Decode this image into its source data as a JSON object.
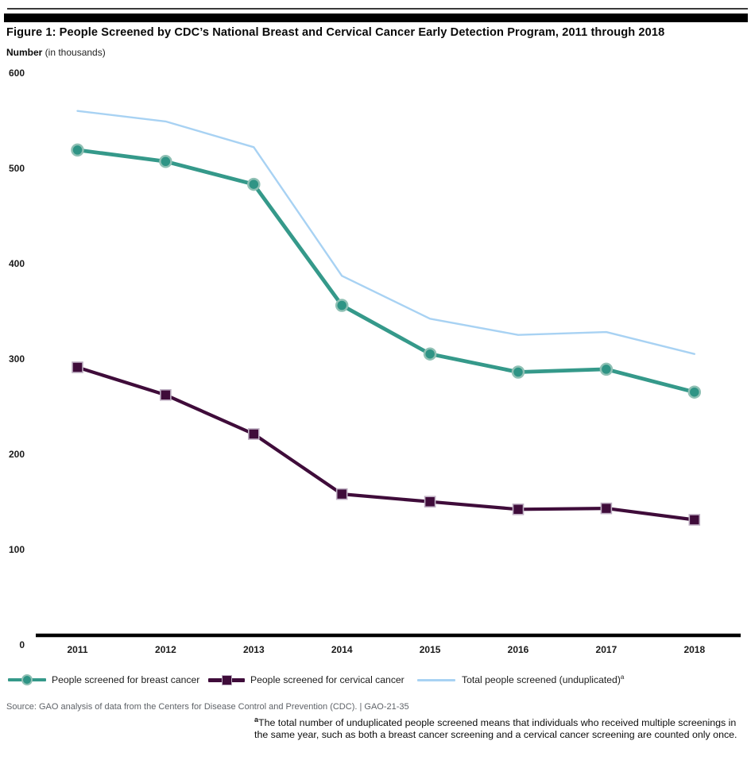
{
  "header": {
    "title": "Figure 1: People Screened by CDC’s National Breast and Cervical Cancer Early Detection Program, 2011 through 2018",
    "unit_bold": "Number",
    "unit_rest": " (in thousands)"
  },
  "chart_data": {
    "type": "line",
    "title": "People Screened by CDC's National Breast and Cervical Cancer Early Detection Program, 2011 through 2018",
    "xlabel": "",
    "ylabel": "Number (in thousands)",
    "categories": [
      "2011",
      "2012",
      "2013",
      "2014",
      "2015",
      "2016",
      "2017",
      "2018"
    ],
    "series": [
      {
        "name": "People screened for breast cancer",
        "values": [
          519,
          507,
          483,
          356,
          305,
          286,
          289,
          265
        ],
        "color": "#35998a",
        "marker": "circle",
        "marker_fill": "#2f9485",
        "marker_stroke": "#8fc0b4",
        "line_width": 4.8
      },
      {
        "name": "People screened for cervical cancer",
        "values": [
          291,
          262,
          221,
          158,
          150,
          142,
          143,
          131
        ],
        "color": "#3f0c3a",
        "marker": "square",
        "marker_fill": "#3f0c3a",
        "marker_stroke": "#bdaec2",
        "line_width": 4.2
      },
      {
        "name": "Total people screened (unduplicated)",
        "name_superscript": "a",
        "values": [
          560,
          549,
          522,
          387,
          342,
          325,
          328,
          305
        ],
        "color": "#a8d2f3",
        "marker": "none",
        "line_width": 2.4
      }
    ],
    "ylim": [
      0,
      600
    ],
    "yticks": [
      600,
      500,
      400,
      300,
      200,
      100,
      0
    ],
    "grid": false,
    "legend_position": "bottom",
    "axis_color": "#000000"
  },
  "source": "Source: GAO analysis of data from the Centers for Disease Control and Prevention (CDC).  |  GAO-21-35",
  "footnote": {
    "sup": "a",
    "text": "The total number of unduplicated people screened means that individuals who received multiple screenings in the same year, such as both a breast cancer screening and a cervical cancer screening are counted only once."
  }
}
